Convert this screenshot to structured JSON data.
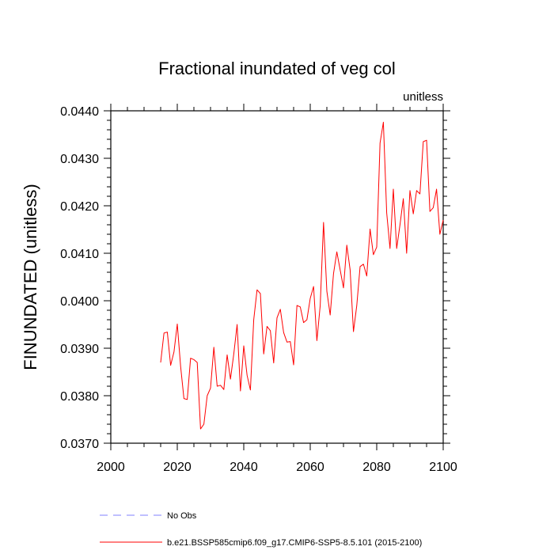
{
  "chart_data": {
    "type": "line",
    "title": "Fractional inundated of veg col",
    "units_label": "unitless",
    "ylabel": "FINUNDATED  (unitless)",
    "xlabel": "",
    "xlim": [
      2000,
      2100
    ],
    "ylim": [
      0.037,
      0.044
    ],
    "x_ticks": [
      2000,
      2020,
      2040,
      2060,
      2080,
      2100
    ],
    "y_ticks": [
      0.037,
      0.038,
      0.039,
      0.04,
      0.041,
      0.042,
      0.043,
      0.044
    ],
    "y_tick_labels": [
      "0.0370",
      "0.0380",
      "0.0390",
      "0.0400",
      "0.0410",
      "0.0420",
      "0.0430",
      "0.0440"
    ],
    "legend": [
      {
        "label": "No Obs",
        "color": "#8080ff",
        "style": "dashed"
      },
      {
        "label": "b.e21.BSSP585cmip6.f09_g17.CMIP6-SSP5-8.5.101 (2015-2100)",
        "color": "#ff0000",
        "style": "solid"
      }
    ],
    "series": [
      {
        "name": "b.e21.BSSP585cmip6.f09_g17.CMIP6-SSP5-8.5.101 (2015-2100)",
        "color": "#ff0000",
        "x": [
          2015,
          2016,
          2017,
          2018,
          2019,
          2020,
          2021,
          2022,
          2023,
          2024,
          2025,
          2026,
          2027,
          2028,
          2029,
          2030,
          2031,
          2032,
          2033,
          2034,
          2035,
          2036,
          2037,
          2038,
          2039,
          2040,
          2041,
          2042,
          2043,
          2044,
          2045,
          2046,
          2047,
          2048,
          2049,
          2050,
          2051,
          2052,
          2053,
          2054,
          2055,
          2056,
          2057,
          2058,
          2059,
          2060,
          2061,
          2062,
          2063,
          2064,
          2065,
          2066,
          2067,
          2068,
          2069,
          2070,
          2071,
          2072,
          2073,
          2074,
          2075,
          2076,
          2077,
          2078,
          2079,
          2080,
          2081,
          2082,
          2083,
          2084,
          2085,
          2086,
          2087,
          2088,
          2089,
          2090,
          2091,
          2092,
          2093,
          2094,
          2095,
          2096,
          2097,
          2098,
          2099,
          2100
        ],
        "values": [
          0.0387,
          0.03932,
          0.03934,
          0.03864,
          0.03892,
          0.03951,
          0.03862,
          0.03794,
          0.03792,
          0.03879,
          0.03876,
          0.0387,
          0.0373,
          0.0374,
          0.038,
          0.03816,
          0.03902,
          0.0382,
          0.03822,
          0.03813,
          0.03886,
          0.03835,
          0.03888,
          0.0395,
          0.0381,
          0.03905,
          0.03843,
          0.03812,
          0.0396,
          0.04023,
          0.04015,
          0.03888,
          0.03946,
          0.03937,
          0.03869,
          0.03964,
          0.03982,
          0.03933,
          0.03913,
          0.03914,
          0.03865,
          0.0399,
          0.03987,
          0.03954,
          0.0396,
          0.04005,
          0.0403,
          0.03916,
          0.0399,
          0.04165,
          0.0402,
          0.0397,
          0.04057,
          0.04103,
          0.04065,
          0.04027,
          0.04117,
          0.04065,
          0.03935,
          0.0399,
          0.04072,
          0.04077,
          0.04052,
          0.04151,
          0.04097,
          0.04113,
          0.04332,
          0.04376,
          0.04185,
          0.0411,
          0.04235,
          0.0411,
          0.0416,
          0.04215,
          0.041,
          0.04232,
          0.04183,
          0.04232,
          0.04225,
          0.04335,
          0.04338,
          0.04188,
          0.04196,
          0.04235,
          0.0414,
          0.0417
        ]
      }
    ]
  }
}
